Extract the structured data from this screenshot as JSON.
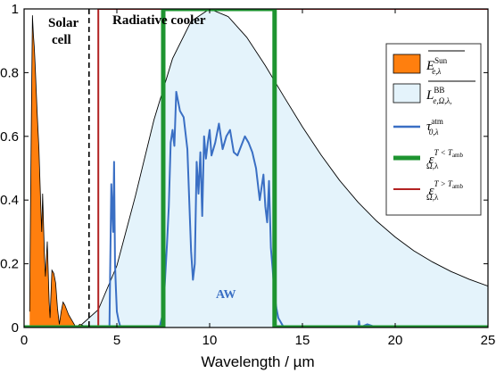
{
  "chart_data": {
    "type": "line",
    "xlabel": "Wavelength / µm",
    "ylabel": "",
    "xlim": [
      0,
      25
    ],
    "ylim": [
      0,
      1
    ],
    "x_ticks": [
      0,
      5,
      10,
      15,
      20,
      25
    ],
    "y_ticks": [
      0,
      0.2,
      0.4,
      0.6,
      0.8,
      1
    ],
    "x_tick_labels": [
      "0",
      "5",
      "10",
      "15",
      "20",
      "25"
    ],
    "y_tick_labels": [
      "0",
      "0.2",
      "0.4",
      "0.6",
      "0.8",
      "1"
    ],
    "grid": false,
    "legend_position": "right",
    "annotations": {
      "solar_cell_line1": "Solar",
      "solar_cell_line2": "cell",
      "radiative_cooler": "Radiative cooler",
      "aw": "AW",
      "divider_x": 3.5
    },
    "series": [
      {
        "name": "E_{e,λ}^{Sun}",
        "color": "#ff7f0e",
        "style": "filled-area",
        "x": [
          0.3,
          0.35,
          0.4,
          0.45,
          0.5,
          0.55,
          0.6,
          0.7,
          0.8,
          0.9,
          0.95,
          1.0,
          1.1,
          1.15,
          1.25,
          1.35,
          1.4,
          1.5,
          1.6,
          1.7,
          1.8,
          1.9,
          2.0,
          2.1,
          2.2,
          2.4,
          2.6,
          2.8,
          3.0,
          3.5
        ],
        "y": [
          0.05,
          0.4,
          0.7,
          0.98,
          0.92,
          0.88,
          0.82,
          0.68,
          0.56,
          0.38,
          0.3,
          0.42,
          0.22,
          0.16,
          0.27,
          0.08,
          0.03,
          0.18,
          0.17,
          0.14,
          0.06,
          0.01,
          0.05,
          0.08,
          0.07,
          0.04,
          0.02,
          0.0,
          0.01,
          0.0
        ]
      },
      {
        "name": "L_{e,Ω,λ}^{BB}",
        "color": "#e4f3fb",
        "style": "filled-area",
        "x": [
          2,
          3,
          4,
          5,
          6,
          7,
          8,
          9,
          10,
          11,
          12,
          13,
          14,
          15,
          16,
          17,
          18,
          19,
          20,
          21,
          22,
          23,
          24,
          25
        ],
        "y": [
          0.0,
          0.004,
          0.056,
          0.194,
          0.413,
          0.652,
          0.844,
          0.961,
          1.0,
          0.976,
          0.911,
          0.822,
          0.725,
          0.63,
          0.542,
          0.462,
          0.393,
          0.334,
          0.284,
          0.241,
          0.206,
          0.176,
          0.151,
          0.13
        ]
      },
      {
        "name": "τ_{0,λ}^{atm}",
        "color": "#3a6fc4",
        "style": "line",
        "x": [
          4.6,
          4.7,
          4.8,
          4.85,
          4.9,
          4.95,
          5.0,
          5.1,
          5.2,
          5.4,
          5.8,
          7.3,
          7.5,
          7.7,
          7.8,
          7.9,
          8.0,
          8.1,
          8.2,
          8.4,
          8.6,
          8.8,
          8.9,
          9.0,
          9.1,
          9.2,
          9.3,
          9.4,
          9.5,
          9.6,
          9.7,
          9.8,
          9.9,
          10.0,
          10.1,
          10.3,
          10.5,
          10.7,
          10.9,
          11.1,
          11.3,
          11.5,
          11.7,
          11.9,
          12.1,
          12.3,
          12.5,
          12.7,
          12.9,
          13.0,
          13.1,
          13.2,
          13.3,
          13.4,
          13.5,
          13.6,
          13.7,
          13.8,
          14.0,
          16.0,
          18.0,
          18.05,
          18.1,
          18.5,
          19.0,
          22.0,
          25.0
        ],
        "y": [
          0.0,
          0.45,
          0.3,
          0.52,
          0.2,
          0.12,
          0.05,
          0.02,
          0.0,
          0.0,
          0.0,
          0.0,
          0.05,
          0.26,
          0.38,
          0.58,
          0.62,
          0.57,
          0.74,
          0.68,
          0.66,
          0.56,
          0.4,
          0.24,
          0.15,
          0.2,
          0.52,
          0.42,
          0.55,
          0.35,
          0.6,
          0.53,
          0.58,
          0.62,
          0.54,
          0.58,
          0.64,
          0.56,
          0.6,
          0.62,
          0.55,
          0.54,
          0.57,
          0.6,
          0.58,
          0.55,
          0.5,
          0.4,
          0.48,
          0.38,
          0.33,
          0.46,
          0.25,
          0.18,
          0.1,
          0.06,
          0.03,
          0.02,
          0.0,
          0.0,
          0.0,
          0.02,
          0.0,
          0.01,
          0.0,
          0.0,
          0.0
        ]
      },
      {
        "name": "ε_{Ω,λ}^{T<T_amb}",
        "color": "#1e9430",
        "style": "line",
        "x": [
          0,
          7.5,
          7.5,
          13.5,
          13.5,
          25
        ],
        "y": [
          0,
          0,
          1,
          1,
          0,
          0
        ]
      },
      {
        "name": "ε_{Ω,λ}^{T>T_amb}",
        "color": "#b22222",
        "style": "line",
        "x": [
          0,
          4,
          4,
          25
        ],
        "y": [
          0,
          0,
          1,
          1
        ]
      }
    ]
  }
}
